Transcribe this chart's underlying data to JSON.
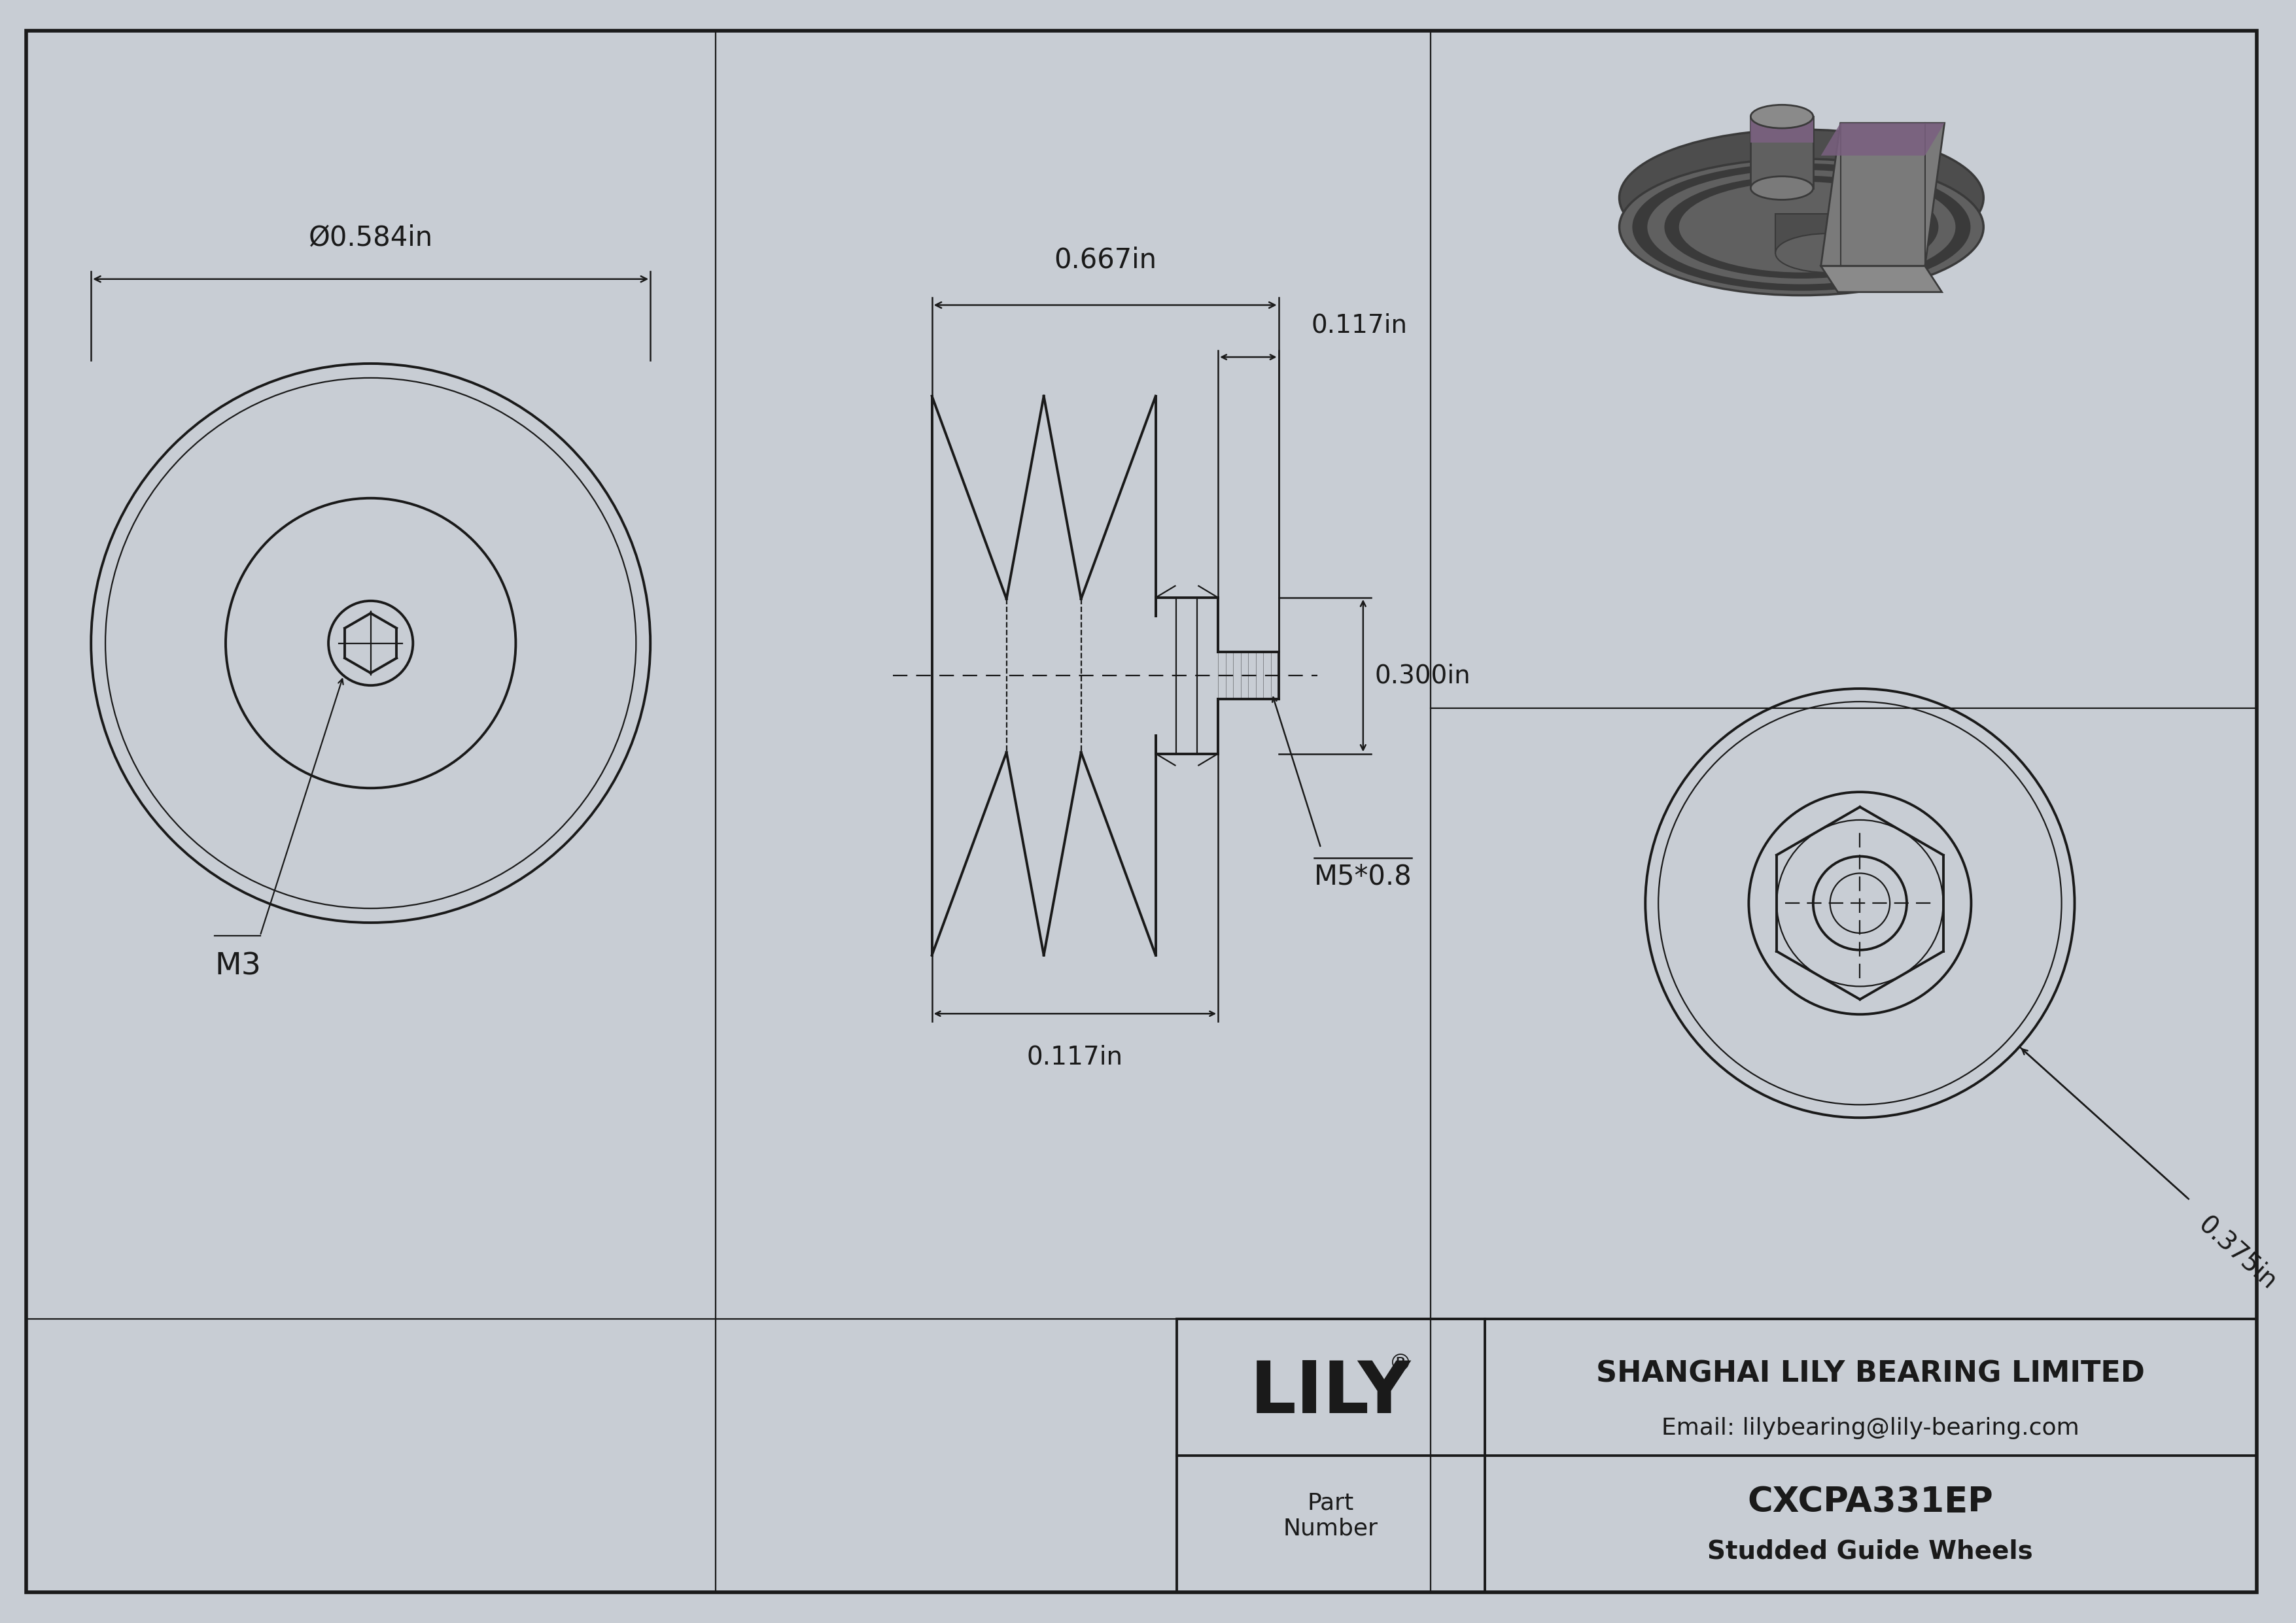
{
  "bg_color": "#c8cdd4",
  "drawing_bg": "#ffffff",
  "line_color": "#1a1a1a",
  "dim_color": "#1a1a1a",
  "part_number": "CXCPA331EP",
  "part_description": "Studded Guide Wheels",
  "company": "SHANGHAI LILY BEARING LIMITED",
  "email": "Email: lilybearing@lily-bearing.com",
  "dims": {
    "outer_dia": "Ø0.584in",
    "total_width": "0.667in",
    "stud_len_top": "0.117in",
    "hex_flat": "0.300in",
    "bottom_dim": "0.117in",
    "thread": "M5*0.8",
    "hex_socket": "M3",
    "side_dim": "0.375in"
  },
  "iso_colors": {
    "dark": "#3a3a3a",
    "mid_dark": "#4d4d4d",
    "mid": "#606060",
    "light": "#7a7a7a",
    "lighter": "#8a8a8a",
    "purple": "#7a6080"
  }
}
